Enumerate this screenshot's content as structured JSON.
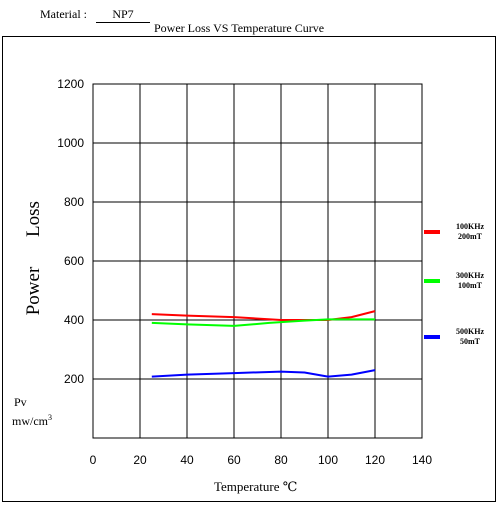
{
  "header": {
    "material_label": "Material :",
    "material_value": "NP7",
    "title": "Power Loss VS Temperature  Curve"
  },
  "chart_data": {
    "type": "line",
    "title": "Power Loss VS Temperature  Curve",
    "xlabel": "Temperature  ℃",
    "ylabel_words": [
      "Power",
      "Loss"
    ],
    "ylabel_symbol": "Pv",
    "ylabel_unit": "mw/cm",
    "ylabel_unit_sup": "3",
    "xlim": [
      0,
      140
    ],
    "ylim": [
      0,
      1200
    ],
    "x_ticks": [
      "0",
      "20",
      "40",
      "60",
      "80",
      "100",
      "120",
      "140"
    ],
    "y_ticks": [
      "200",
      "400",
      "600",
      "800",
      "1000",
      "1200"
    ],
    "grid": true,
    "legend_position": "right",
    "series": [
      {
        "name": "100KHz\n200mT",
        "label_line1": "100KHz",
        "label_line2": "200mT",
        "color": "#ff0000",
        "points": [
          [
            25,
            420
          ],
          [
            40,
            415
          ],
          [
            60,
            410
          ],
          [
            80,
            400
          ],
          [
            85,
            400
          ],
          [
            100,
            400
          ],
          [
            110,
            410
          ],
          [
            120,
            430
          ]
        ]
      },
      {
        "name": "300KHz\n100mT",
        "label_line1": "300KHz",
        "label_line2": "100mT",
        "color": "#00ff00",
        "points": [
          [
            25,
            390
          ],
          [
            40,
            385
          ],
          [
            60,
            380
          ],
          [
            75,
            390
          ],
          [
            90,
            398
          ],
          [
            100,
            402
          ],
          [
            120,
            402
          ]
        ]
      },
      {
        "name": "500KHz\n50mT",
        "label_line1": "500KHz",
        "label_line2": "50mT",
        "color": "#0000ff",
        "points": [
          [
            25,
            208
          ],
          [
            40,
            215
          ],
          [
            60,
            220
          ],
          [
            80,
            225
          ],
          [
            90,
            222
          ],
          [
            100,
            208
          ],
          [
            110,
            215
          ],
          [
            120,
            230
          ]
        ]
      }
    ]
  }
}
